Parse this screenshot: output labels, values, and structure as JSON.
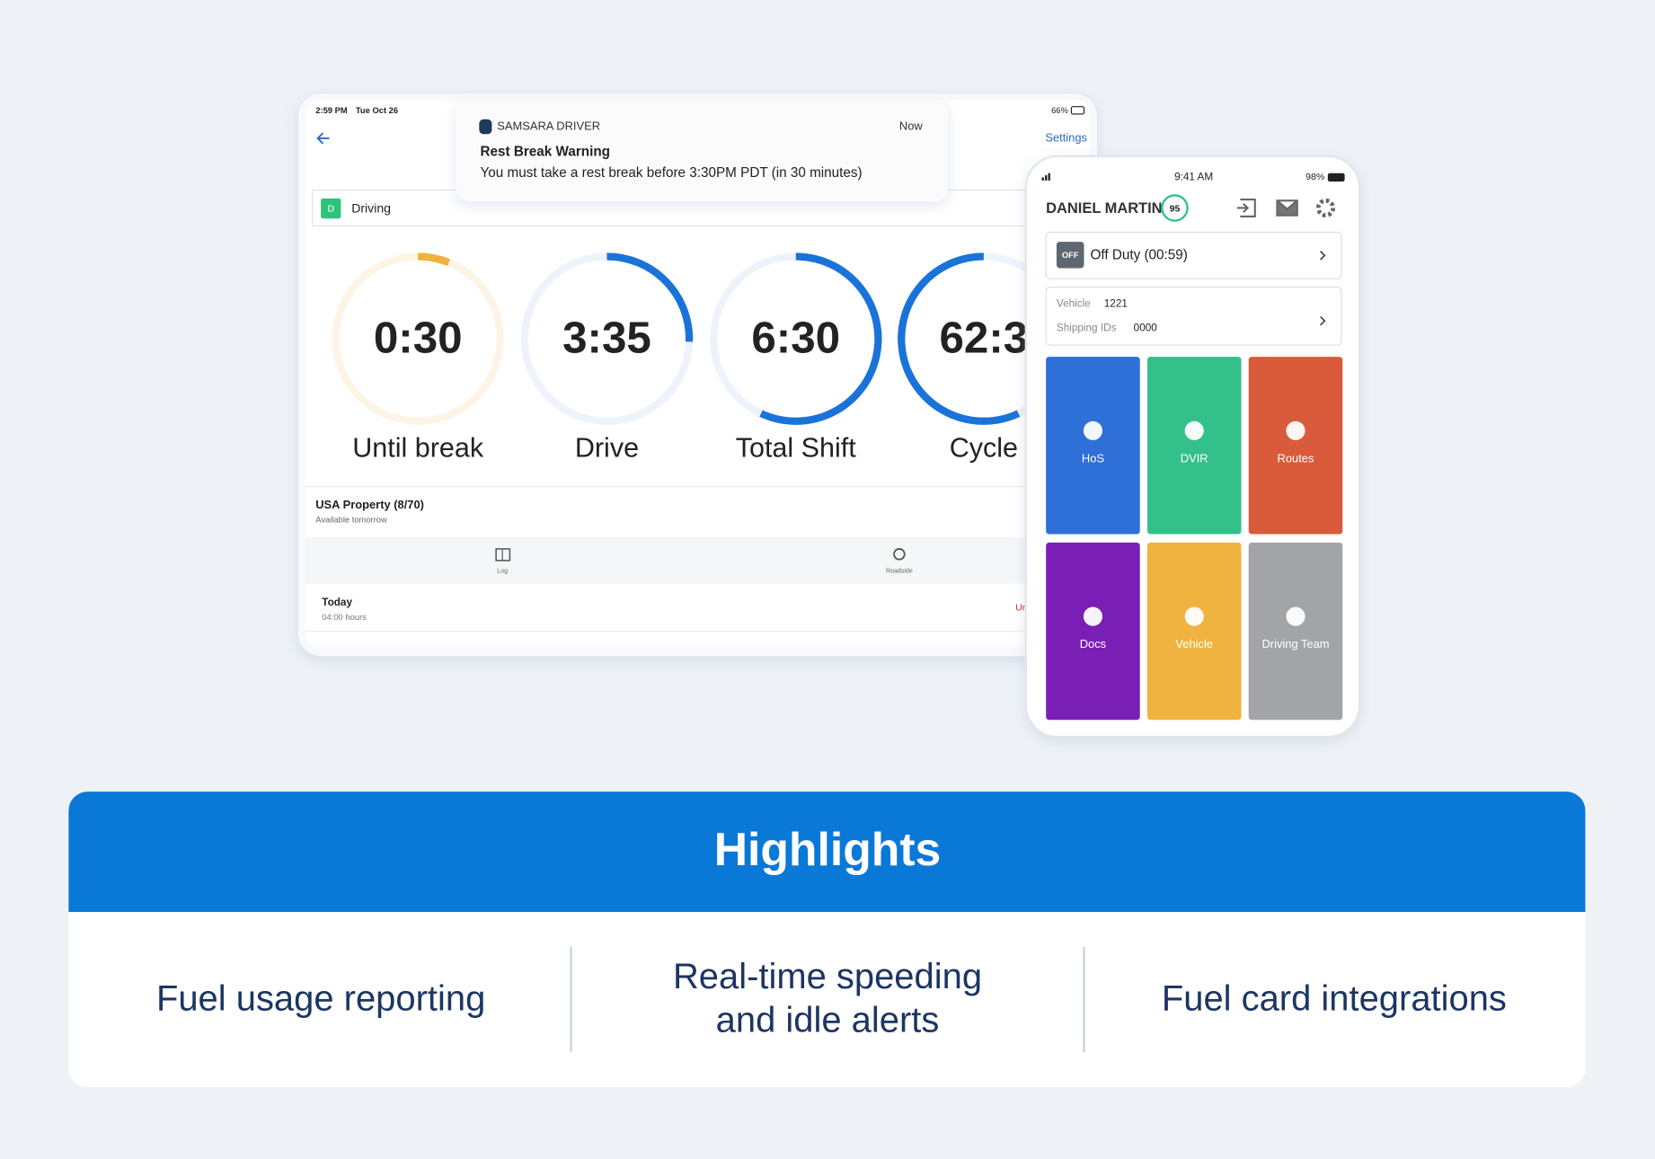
{
  "tablet": {
    "status_time": "2:59 PM",
    "status_date": "Tue Oct 26",
    "battery": "66%",
    "settings": "Settings",
    "status_badge": "D",
    "status_label": "Driving",
    "notification": {
      "app": "SAMSARA DRIVER",
      "time": "Now",
      "title": "Rest Break Warning",
      "body": "You must take a rest break before 3:30PM PDT (in 30 minutes)"
    },
    "clocks": [
      {
        "value": "0:30",
        "label": "Until break"
      },
      {
        "value": "3:35",
        "label": "Drive"
      },
      {
        "value": "6:30",
        "label": "Total Shift"
      },
      {
        "value": "62:3",
        "label": "Cycle"
      }
    ],
    "ruleset": {
      "name": "USA Property (8/70)",
      "availability": "Available tomorrow"
    },
    "tabs": [
      "Log",
      "Roadside"
    ],
    "log": {
      "day": "Today",
      "hours": "04:00 hours",
      "status": "Ur"
    }
  },
  "phone": {
    "status_time": "9:41 AM",
    "battery": "98%",
    "driver": "DANIEL MARTIN",
    "score": "95",
    "duty_badge": "OFF",
    "duty_status": "Off Duty (00:59)",
    "vehicle_label": "Vehicle",
    "vehicle": "1221",
    "shipping_label": "Shipping IDs",
    "shipping": "0000",
    "tiles": [
      "HoS",
      "DVIR",
      "Routes",
      "Docs",
      "Vehicle",
      "Driving Team"
    ]
  },
  "highlights": {
    "title": "Highlights",
    "items": [
      {
        "lines": [
          "Fuel usage reporting"
        ]
      },
      {
        "lines": [
          "Real-time speeding",
          "and idle alerts"
        ]
      },
      {
        "lines": [
          "Fuel card integrations"
        ]
      }
    ]
  }
}
